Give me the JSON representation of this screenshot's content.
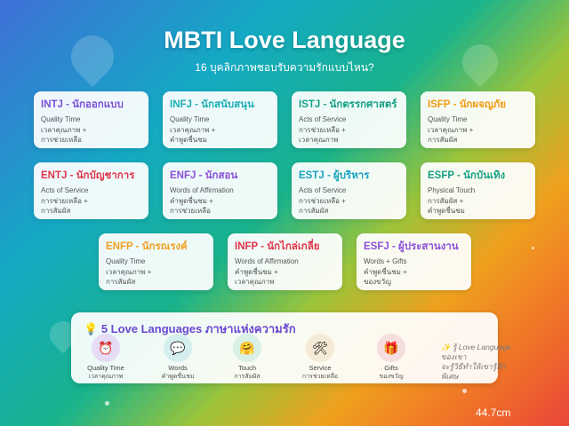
{
  "header": {
    "title": "MBTI Love Language",
    "subtitle": "16 บุคลิกภาพชอบรับความรักแบบไหน?"
  },
  "cards": [
    {
      "title": "INTJ - นักออกแบบ",
      "primary": "Quality Time",
      "line1": "เวลาคุณภาพ +",
      "line2": "การช่วยเหลือ",
      "color": "#7b4fd6"
    },
    {
      "title": "INFJ - นักสนับสนุน",
      "primary": "Quality Time",
      "line1": "เวลาคุณภาพ +",
      "line2": "คำพูดชื่นชม",
      "color": "#19aeb4"
    },
    {
      "title": "ISTJ - นักตรรกศาสตร์",
      "primary": "Acts of Service",
      "line1": "การช่วยเหลือ +",
      "line2": "เวลาคุณภาพ",
      "color": "#16a085"
    },
    {
      "title": "ISFP - นักผจญภัย",
      "primary": "Quality Time",
      "line1": "เวลาคุณภาพ +",
      "line2": "การสัมผัส",
      "color": "#f39c12"
    },
    {
      "title": "ENTJ - นักบัญชาการ",
      "primary": "Acts of Service",
      "line1": "การช่วยเหลือ +",
      "line2": "การสัมผัส",
      "color": "#e0344a"
    },
    {
      "title": "ENFJ - นักสอน",
      "primary": "Words of Affirmation",
      "line1": "คำพูดชื่นชม +",
      "line2": "การช่วยเหลือ",
      "color": "#8a4fd6"
    },
    {
      "title": "ESTJ - ผู้บริหาร",
      "primary": "Acts of Service",
      "line1": "การช่วยเหลือ +",
      "line2": "การสัมผัส",
      "color": "#17a2c0"
    },
    {
      "title": "ESFP - นักบันเทิง",
      "primary": "Physical Touch",
      "line1": "การสัมผัส +",
      "line2": "คำพูดชื่นชม",
      "color": "#16a085"
    },
    {
      "title": "ENFP - นักรณรงค์",
      "primary": "Quality Time",
      "line1": "เวลาคุณภาพ +",
      "line2": "การสัมผัส",
      "color": "#f0a020"
    },
    {
      "title": "INFP - นักไกล่เกลี่ย",
      "primary": "Words of Affirmation",
      "line1": "คำพูดชื่นชม +",
      "line2": "เวลาคุณภาพ",
      "color": "#e0344a"
    },
    {
      "title": "ESFJ - ผู้ประสานงาน",
      "primary": "Words + Gifts",
      "line1": "คำพูดชื่นชม +",
      "line2": "ของขวัญ",
      "color": "#8a4fd6"
    }
  ],
  "panel": {
    "icon": "lightbulb-icon",
    "title": "5 Love Languages ภาษาแห่งความรัก",
    "languages": [
      {
        "icon": "⏰",
        "icon_name": "alarm-clock-icon",
        "en": "Quality Time",
        "th": "เวลาคุณภาพ",
        "bg": "#e6dcf5"
      },
      {
        "icon": "💬",
        "icon_name": "speech-bubble-icon",
        "en": "Words",
        "th": "คำพูดชื่นชม",
        "bg": "#d5efee"
      },
      {
        "icon": "🤗",
        "icon_name": "hug-icon",
        "en": "Touch",
        "th": "การสัมผัส",
        "bg": "#d8f0e6"
      },
      {
        "icon": "🛠",
        "icon_name": "tools-icon",
        "en": "Service",
        "th": "การช่วยเหลือ",
        "bg": "#f4ead6"
      },
      {
        "icon": "🎁",
        "icon_name": "gift-icon",
        "en": "Gifts",
        "th": "ของขวัญ",
        "bg": "#f6dede"
      }
    ],
    "tip_line1": "✨ รู้ Love Language ของเขา",
    "tip_line2": "จะรู้วิธีทำให้เขารู้สึกพิเศษ"
  },
  "footer": {
    "measure": "44.7cm"
  }
}
